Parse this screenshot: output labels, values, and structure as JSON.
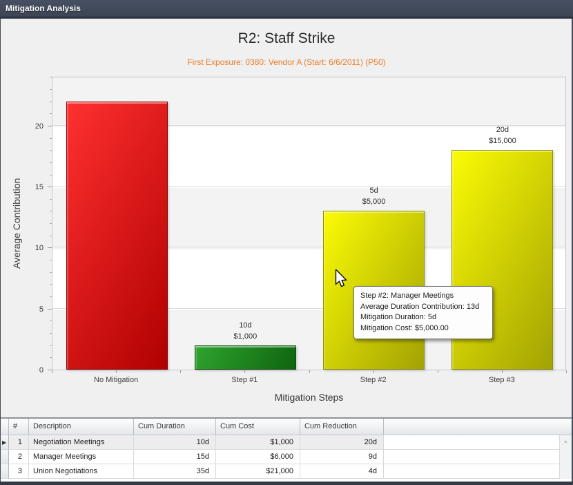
{
  "window": {
    "title": "Mitigation Analysis",
    "titlebar_color": "#3D4554"
  },
  "chart": {
    "title": "R2: Staff Strike",
    "subtitle": "First Exposure: 0380: Vendor A (Start: 6/6/2011) (P50)",
    "subtitle_color": "#E87D26",
    "y_axis_title": "Average Contribution",
    "x_axis_title": "Mitigation Steps"
  },
  "chart_data": {
    "type": "bar",
    "title": "R2: Staff Strike",
    "xlabel": "Mitigation Steps",
    "ylabel": "Average Contribution",
    "categories": [
      "No Mitigation",
      "Step #1",
      "Step #2",
      "Step #3"
    ],
    "values": [
      22,
      2,
      13,
      18
    ],
    "bar_labels": [
      [],
      [
        "10d",
        "$1,000"
      ],
      [
        "5d",
        "$5,000"
      ],
      [
        "20d",
        "$15,000"
      ]
    ],
    "bar_colors": [
      {
        "from": "#FF3030",
        "to": "#B00000",
        "border": "#8E0000"
      },
      {
        "from": "#2FA42F",
        "to": "#0E640E",
        "border": "#0A4A0A"
      },
      {
        "from": "#FBFB05",
        "to": "#A2A204",
        "border": "#8E8E06"
      },
      {
        "from": "#FBFB05",
        "to": "#A2A204",
        "border": "#8E8E06"
      }
    ],
    "ylim": [
      0,
      24
    ],
    "y_ticks": [
      0,
      5,
      10,
      15,
      20
    ],
    "grid": "horizontal-bands",
    "legend": "none"
  },
  "tooltip": {
    "lines": [
      "Step #2: Manager Meetings",
      "Average Duration Contribution: 13d",
      "Mitigation Duration: 5d",
      "Mitigation Cost: $5,000.00"
    ]
  },
  "table": {
    "headers": [
      "#",
      "Description",
      "Cum Duration",
      "Cum Cost",
      "Cum Reduction"
    ],
    "rows": [
      {
        "num": "1",
        "description": "Negotiation Meetings",
        "cum_duration": "10d",
        "cum_cost": "$1,000",
        "cum_reduction": "20d",
        "selected": true
      },
      {
        "num": "2",
        "description": "Manager Meetings",
        "cum_duration": "15d",
        "cum_cost": "$6,000",
        "cum_reduction": "9d",
        "selected": false
      },
      {
        "num": "3",
        "description": "Union Negotiations",
        "cum_duration": "35d",
        "cum_cost": "$21,000",
        "cum_reduction": "4d",
        "selected": false
      }
    ],
    "row_selector_icon": "▶",
    "scrollbar_up_icon": "▲"
  }
}
